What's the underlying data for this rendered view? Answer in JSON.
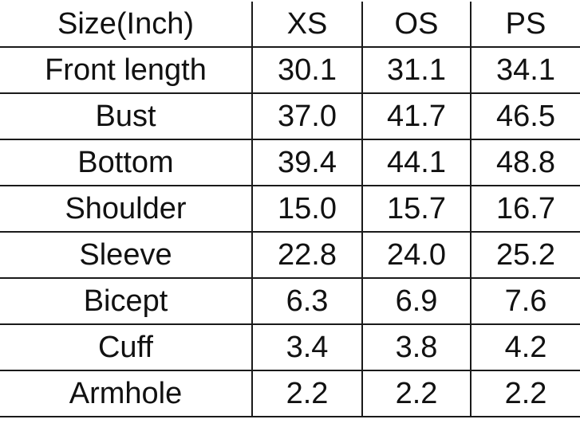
{
  "table": {
    "headers": [
      "Size(Inch)",
      "XS",
      "OS",
      "PS"
    ],
    "rows": [
      [
        "Front length",
        "30.1",
        "31.1",
        "34.1"
      ],
      [
        "Bust",
        "37.0",
        "41.7",
        "46.5"
      ],
      [
        "Bottom",
        "39.4",
        "44.1",
        "48.8"
      ],
      [
        "Shoulder",
        "15.0",
        "15.7",
        "16.7"
      ],
      [
        "Sleeve",
        "22.8",
        "24.0",
        "25.2"
      ],
      [
        "Bicept",
        "6.3",
        "6.9",
        "7.6"
      ],
      [
        "Cuff",
        "3.4",
        "3.8",
        "4.2"
      ],
      [
        "Armhole",
        "2.2",
        "2.2",
        "2.2"
      ]
    ]
  }
}
